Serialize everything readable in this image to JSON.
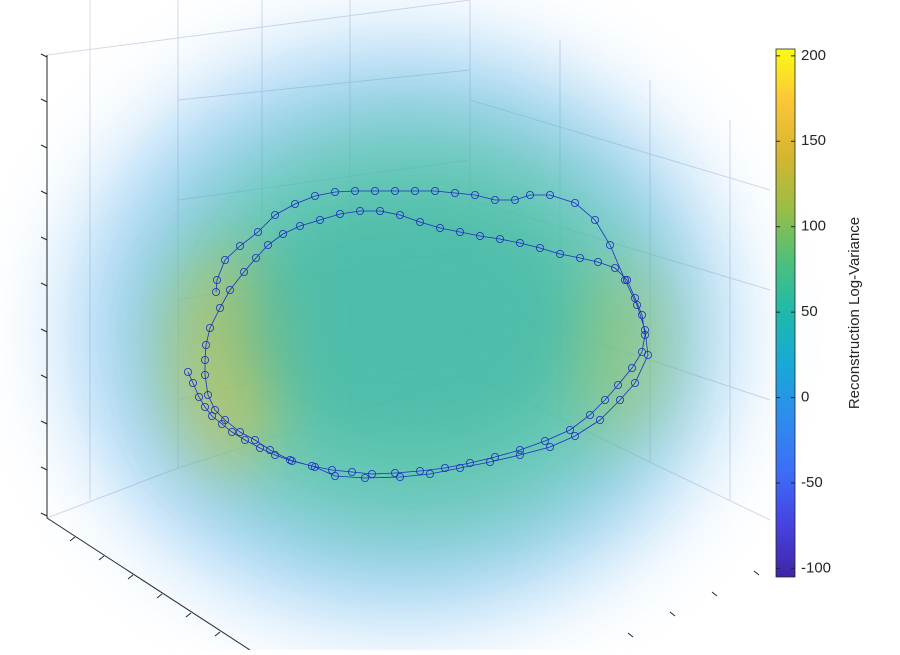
{
  "chart_data": {
    "type": "colorbar",
    "colorbar_label": "Reconstruction Log-Variance",
    "clim": [
      -105,
      204
    ],
    "cticks": [
      -100,
      -50,
      0,
      50,
      100,
      150,
      200
    ],
    "colormap": [
      "#3e26a8",
      "#4743e1",
      "#3c6ef8",
      "#2e8ced",
      "#19a8d8",
      "#1eb9ac",
      "#4ec07a",
      "#9cbd44",
      "#d6b62f",
      "#fcc538",
      "#f9fb15"
    ]
  }
}
